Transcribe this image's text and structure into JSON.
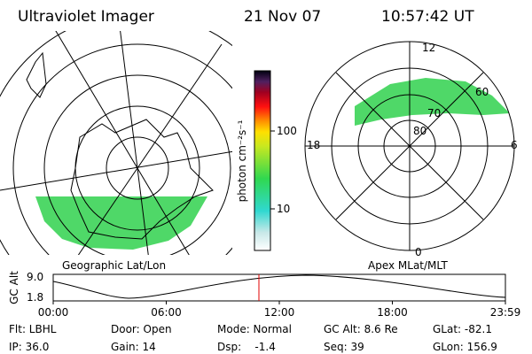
{
  "header": {
    "title": "Ultraviolet Imager",
    "date": "21 Nov 07",
    "time": "10:57:42 UT"
  },
  "left_panel": {
    "caption": "Geographic Lat/Lon"
  },
  "colorbar": {
    "label": "photon cm⁻²s⁻¹",
    "ticks": [
      "100",
      "10"
    ]
  },
  "right_panel": {
    "caption": "Apex MLat/MLT",
    "mlt_labels": [
      "12",
      "18",
      "6",
      "0"
    ],
    "lat_labels": [
      "80",
      "70",
      "60"
    ]
  },
  "timeline": {
    "axis_label": "GC Alt",
    "y_labels": [
      "9.0",
      "1.8"
    ],
    "x_labels": [
      "00:00",
      "06:00",
      "12:00",
      "18:00",
      "23:59"
    ]
  },
  "footer": {
    "rows": [
      [
        "Flt: LBHL",
        "Door: Open",
        "Mode: Normal",
        "GC Alt: 8.6 Re",
        "GLat: -82.1"
      ],
      [
        "IP: 36.0",
        "Gain: 14",
        "Dsp:    -1.4",
        "Seq: 39",
        "GLon: 156.9"
      ]
    ]
  }
}
